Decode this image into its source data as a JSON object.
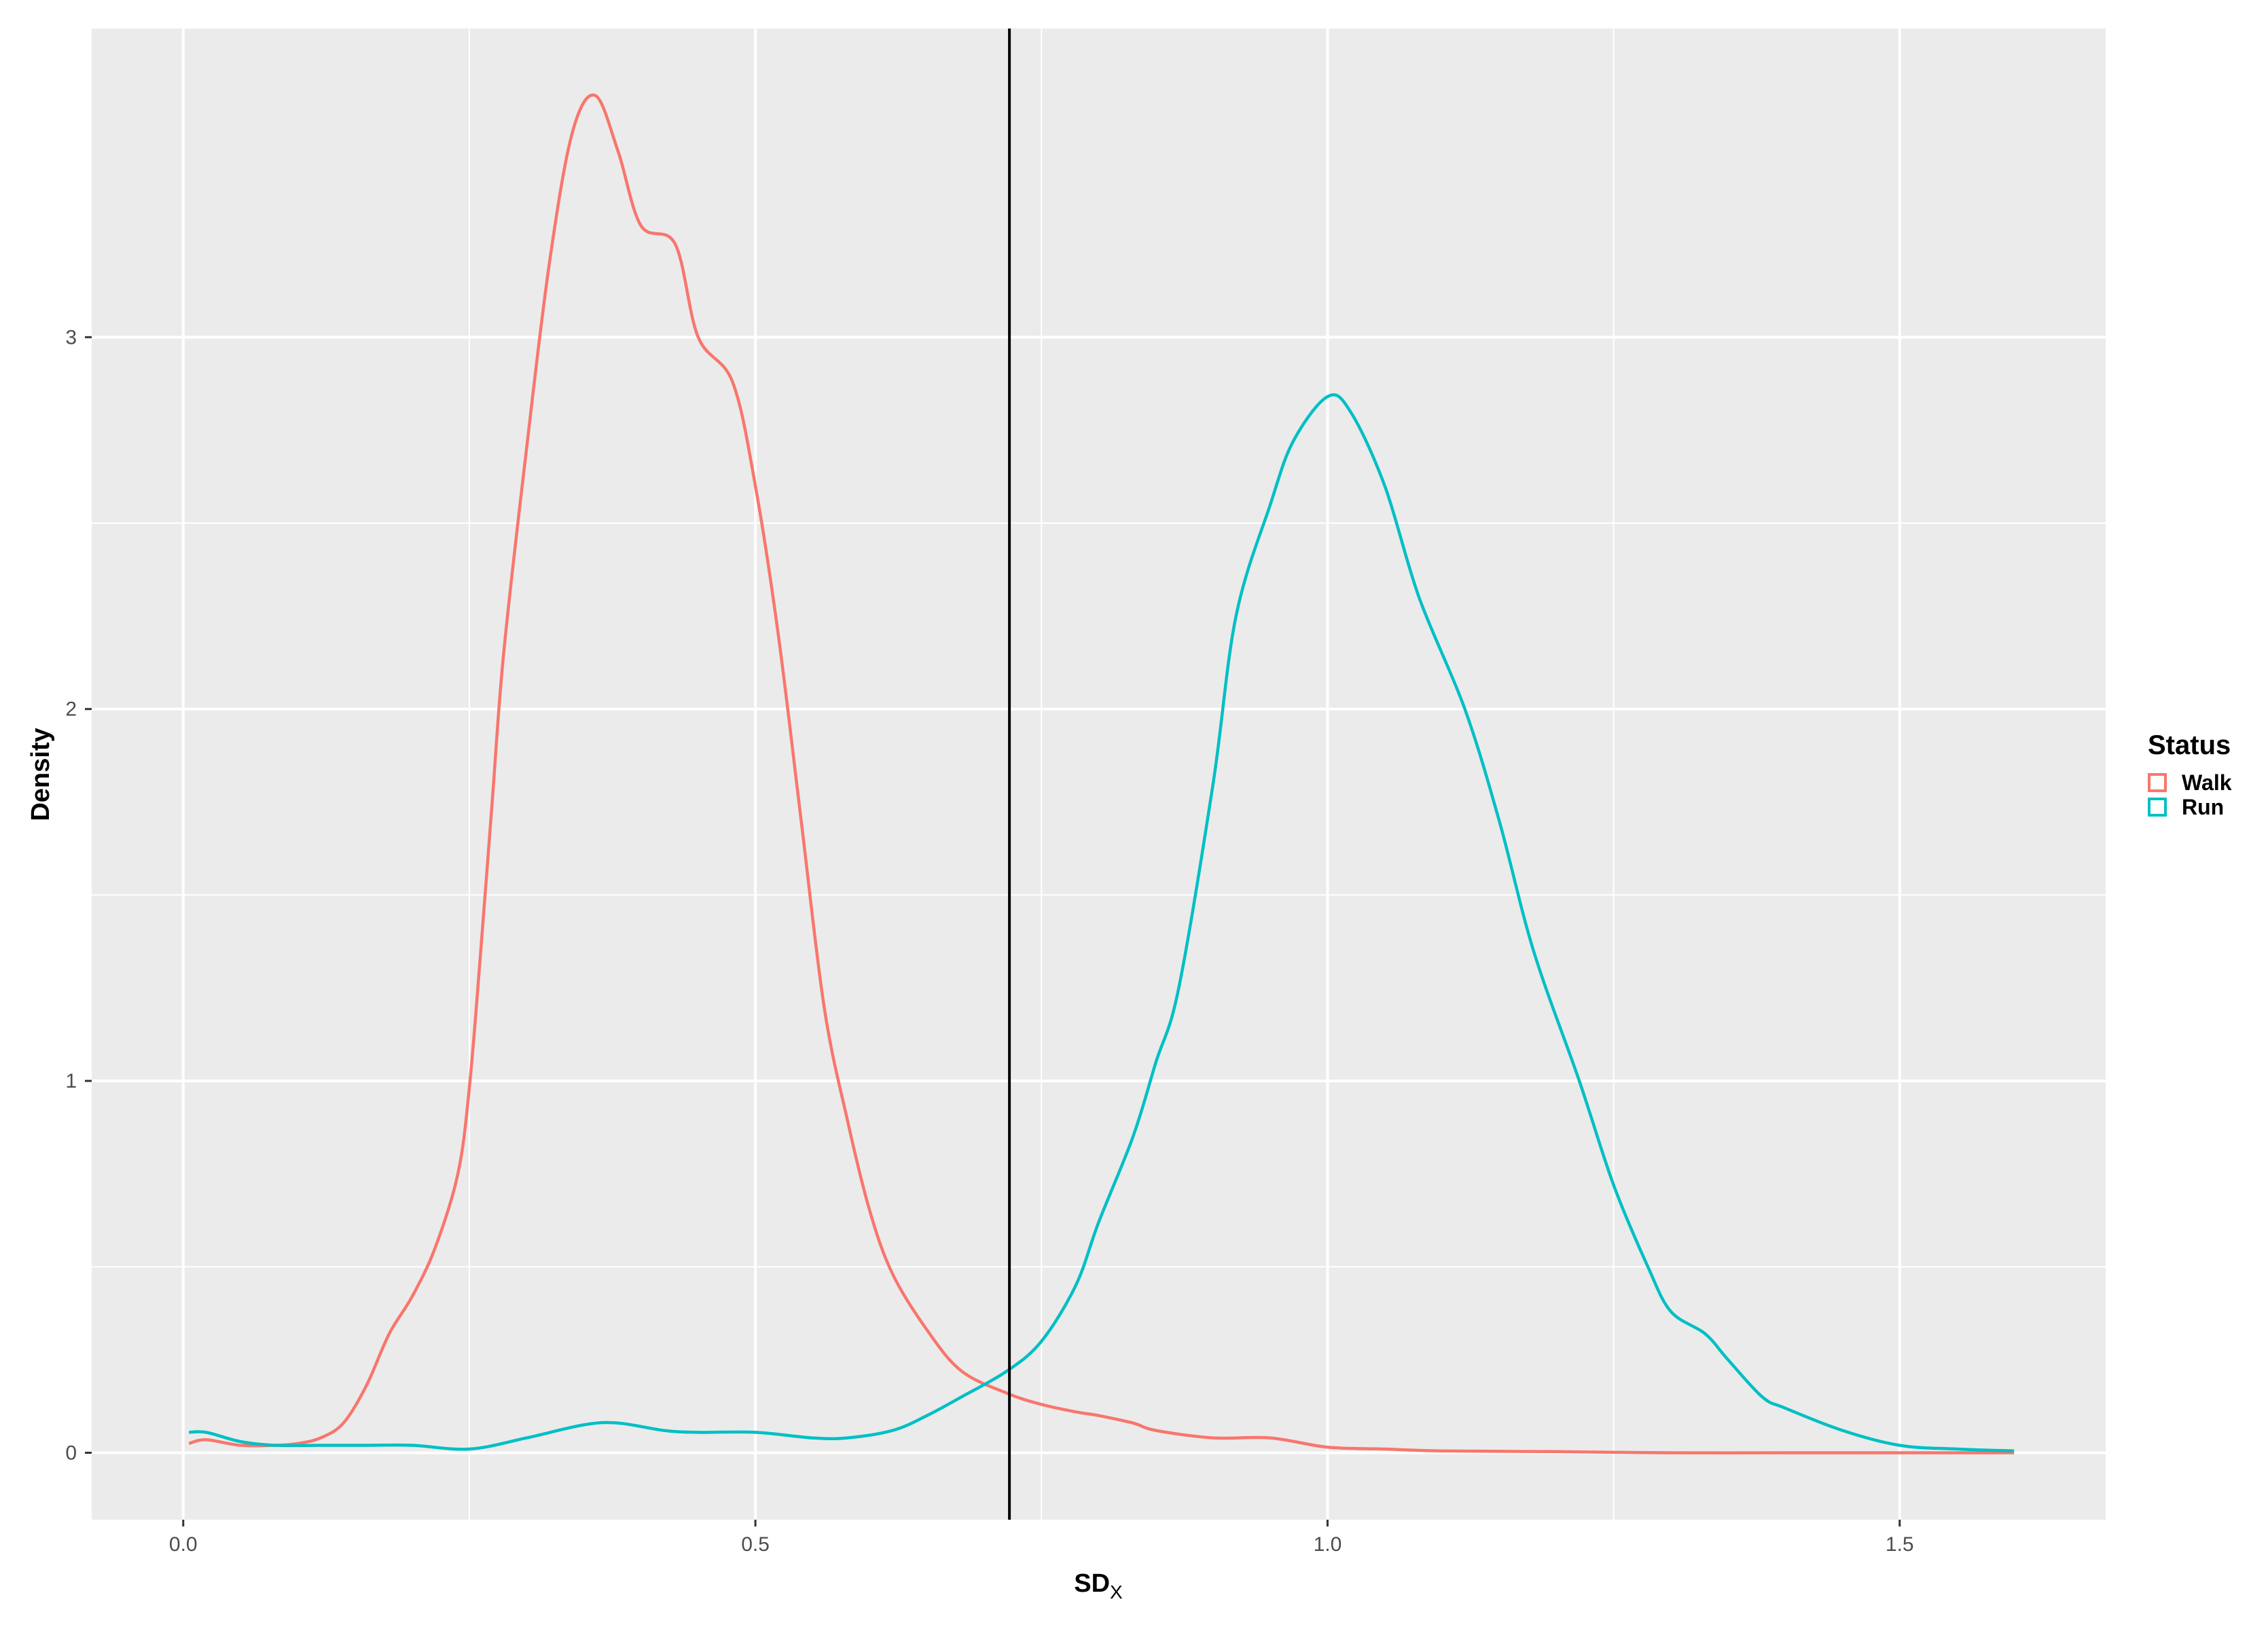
{
  "chart_data": {
    "type": "line",
    "subtype": "density",
    "xlabel_main": "SD",
    "xlabel_sub": "X",
    "ylabel": "Density",
    "xlim": [
      -0.08,
      1.68
    ],
    "ylim": [
      -0.18,
      3.83
    ],
    "x_ticks": [
      0.0,
      0.5,
      1.0,
      1.5
    ],
    "x_tick_labels": [
      "0.0",
      "0.5",
      "1.0",
      "1.5"
    ],
    "y_ticks": [
      0,
      1,
      2,
      3
    ],
    "y_tick_labels": [
      "0",
      "1",
      "2",
      "3"
    ],
    "grid": true,
    "vline_x": 0.722,
    "legend": {
      "title": "Status",
      "position": "right"
    },
    "series": [
      {
        "name": "Walk",
        "color": "#F8766D",
        "points": [
          [
            0.005,
            0.025
          ],
          [
            0.02,
            0.035
          ],
          [
            0.05,
            0.02
          ],
          [
            0.08,
            0.02
          ],
          [
            0.1,
            0.025
          ],
          [
            0.12,
            0.04
          ],
          [
            0.14,
            0.08
          ],
          [
            0.16,
            0.18
          ],
          [
            0.18,
            0.32
          ],
          [
            0.2,
            0.42
          ],
          [
            0.22,
            0.55
          ],
          [
            0.24,
            0.75
          ],
          [
            0.25,
            0.98
          ],
          [
            0.26,
            1.35
          ],
          [
            0.27,
            1.75
          ],
          [
            0.28,
            2.15
          ],
          [
            0.3,
            2.7
          ],
          [
            0.32,
            3.2
          ],
          [
            0.34,
            3.55
          ],
          [
            0.36,
            3.65
          ],
          [
            0.38,
            3.5
          ],
          [
            0.4,
            3.3
          ],
          [
            0.43,
            3.25
          ],
          [
            0.45,
            3.0
          ],
          [
            0.48,
            2.88
          ],
          [
            0.5,
            2.6
          ],
          [
            0.52,
            2.2
          ],
          [
            0.54,
            1.7
          ],
          [
            0.56,
            1.2
          ],
          [
            0.58,
            0.9
          ],
          [
            0.6,
            0.65
          ],
          [
            0.62,
            0.48
          ],
          [
            0.65,
            0.33
          ],
          [
            0.68,
            0.22
          ],
          [
            0.72,
            0.16
          ],
          [
            0.75,
            0.13
          ],
          [
            0.78,
            0.11
          ],
          [
            0.8,
            0.1
          ],
          [
            0.83,
            0.08
          ],
          [
            0.85,
            0.06
          ],
          [
            0.9,
            0.04
          ],
          [
            0.95,
            0.04
          ],
          [
            1.0,
            0.015
          ],
          [
            1.05,
            0.01
          ],
          [
            1.1,
            0.005
          ],
          [
            1.2,
            0.003
          ],
          [
            1.3,
            0.0
          ],
          [
            1.4,
            0.0
          ],
          [
            1.5,
            0.0
          ],
          [
            1.6,
            0.0
          ]
        ]
      },
      {
        "name": "Run",
        "color": "#00BFC4",
        "points": [
          [
            0.005,
            0.055
          ],
          [
            0.02,
            0.055
          ],
          [
            0.05,
            0.03
          ],
          [
            0.08,
            0.02
          ],
          [
            0.12,
            0.02
          ],
          [
            0.16,
            0.02
          ],
          [
            0.2,
            0.02
          ],
          [
            0.25,
            0.01
          ],
          [
            0.3,
            0.04
          ],
          [
            0.35,
            0.075
          ],
          [
            0.38,
            0.08
          ],
          [
            0.42,
            0.06
          ],
          [
            0.45,
            0.055
          ],
          [
            0.5,
            0.055
          ],
          [
            0.55,
            0.04
          ],
          [
            0.58,
            0.04
          ],
          [
            0.62,
            0.06
          ],
          [
            0.65,
            0.1
          ],
          [
            0.68,
            0.15
          ],
          [
            0.72,
            0.22
          ],
          [
            0.75,
            0.3
          ],
          [
            0.78,
            0.45
          ],
          [
            0.8,
            0.62
          ],
          [
            0.83,
            0.85
          ],
          [
            0.85,
            1.05
          ],
          [
            0.87,
            1.25
          ],
          [
            0.9,
            1.8
          ],
          [
            0.92,
            2.25
          ],
          [
            0.95,
            2.55
          ],
          [
            0.97,
            2.72
          ],
          [
            1.0,
            2.84
          ],
          [
            1.02,
            2.8
          ],
          [
            1.05,
            2.6
          ],
          [
            1.08,
            2.3
          ],
          [
            1.12,
            2.0
          ],
          [
            1.15,
            1.7
          ],
          [
            1.18,
            1.35
          ],
          [
            1.22,
            1.0
          ],
          [
            1.25,
            0.72
          ],
          [
            1.28,
            0.5
          ],
          [
            1.3,
            0.38
          ],
          [
            1.33,
            0.32
          ],
          [
            1.35,
            0.25
          ],
          [
            1.38,
            0.15
          ],
          [
            1.4,
            0.12
          ],
          [
            1.45,
            0.06
          ],
          [
            1.5,
            0.02
          ],
          [
            1.55,
            0.01
          ],
          [
            1.6,
            0.005
          ]
        ]
      }
    ]
  }
}
